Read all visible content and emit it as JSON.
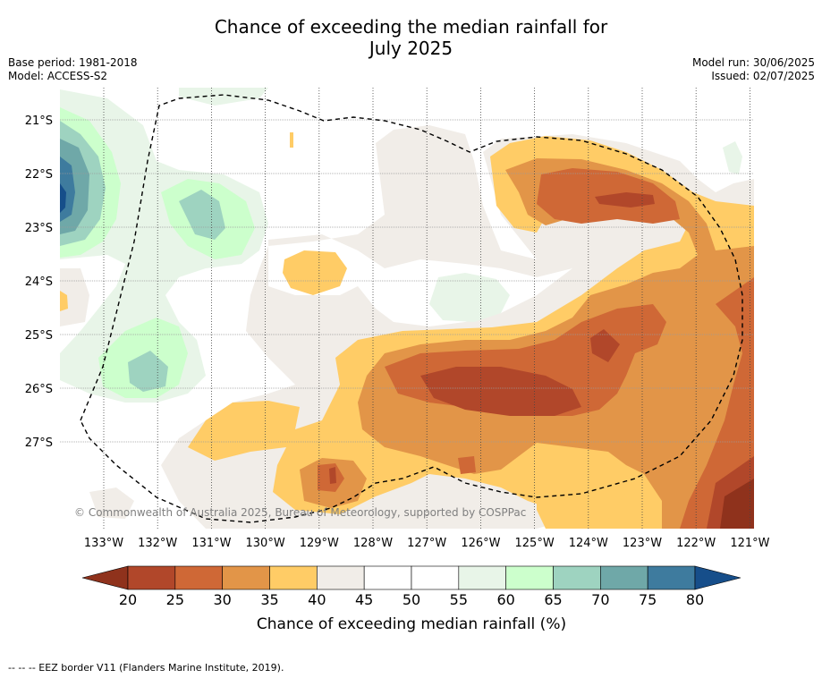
{
  "title": {
    "line1": "Chance of exceeding the median rainfall for",
    "line2": "July 2025"
  },
  "meta_left": {
    "base_period": "Base period: 1981-2018",
    "model": "Model: ACCESS-S2"
  },
  "meta_right": {
    "model_run": "Model run: 30/06/2025",
    "issued": "Issued: 02/07/2025"
  },
  "map": {
    "lat_labels": [
      "21°S",
      "22°S",
      "23°S",
      "24°S",
      "25°S",
      "26°S",
      "27°S"
    ],
    "lon_labels": [
      "133°W",
      "132°W",
      "131°W",
      "130°W",
      "129°W",
      "128°W",
      "127°W",
      "126°W",
      "125°W",
      "124°W",
      "123°W",
      "122°W",
      "121°W"
    ],
    "copyright": "© Commonwealth of Australia 2025, Bureau of Meteorology, supported by COSPPac"
  },
  "colorbar": {
    "ticks": [
      "20",
      "25",
      "30",
      "35",
      "40",
      "45",
      "50",
      "55",
      "60",
      "65",
      "70",
      "75",
      "80"
    ],
    "label": "Chance of exceeding median rainfall (%)",
    "colors": [
      "#8f321c",
      "#b1472a",
      "#cf6836",
      "#e29548",
      "#ffcc66",
      "#f1ede8",
      "#ffffff",
      "#ffffff",
      "#e8f5e8",
      "#ccffcc",
      "#9ed3c0",
      "#6fa8a8",
      "#3e7b9e",
      "#164e8a"
    ]
  },
  "footnote": "--  --  -- EEZ border V11 (Flanders Marine Institute, 2019)."
}
